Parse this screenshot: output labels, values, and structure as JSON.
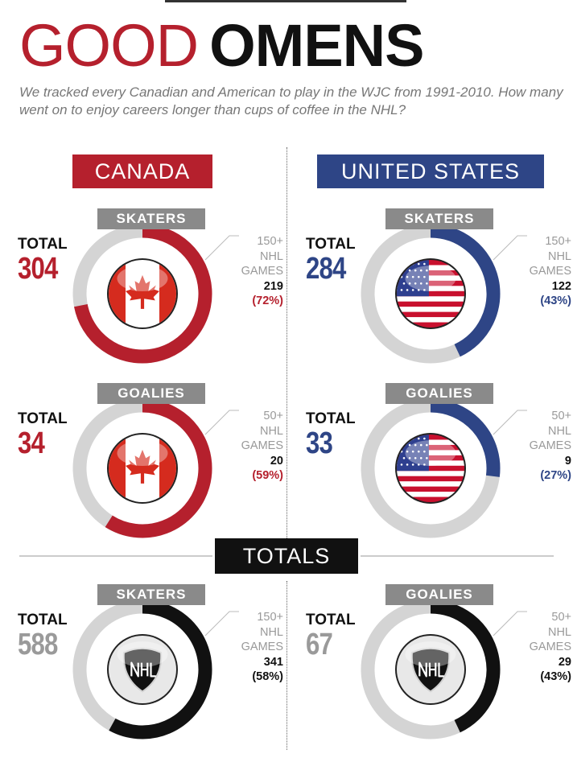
{
  "title": {
    "part1": "GOOD",
    "part2": "OMENS"
  },
  "subtitle": "We tracked every Canadian and American to play in the WJC from 1991-2010. How many went on to enjoy careers longer than cups of coffee in the NHL?",
  "colors": {
    "canada": "#b5202d",
    "usa": "#2e4586",
    "totals_accent": "#111111",
    "track": "#d4d4d4",
    "totals_number": "#9a9a9a"
  },
  "sections": {
    "canada_header": "CANADA",
    "usa_header": "UNITED STATES",
    "totals_header": "TOTALS"
  },
  "panels": {
    "can_sk": {
      "pill": "SKATERS",
      "total_label": "TOTAL",
      "total": "304",
      "annot_line1": "150+",
      "annot_line2": "NHL",
      "annot_line3": "GAMES",
      "count": "219",
      "percent": "(72%)",
      "icon": "canada-flag-icon"
    },
    "usa_sk": {
      "pill": "SKATERS",
      "total_label": "TOTAL",
      "total": "284",
      "annot_line1": "150+",
      "annot_line2": "NHL",
      "annot_line3": "GAMES",
      "count": "122",
      "percent": "(43%)",
      "icon": "usa-flag-icon"
    },
    "can_go": {
      "pill": "GOALIES",
      "total_label": "TOTAL",
      "total": "34",
      "annot_line1": "50+",
      "annot_line2": "NHL",
      "annot_line3": "GAMES",
      "count": "20",
      "percent": "(59%)",
      "icon": "canada-flag-icon"
    },
    "usa_go": {
      "pill": "GOALIES",
      "total_label": "TOTAL",
      "total": "33",
      "annot_line1": "50+",
      "annot_line2": "NHL",
      "annot_line3": "GAMES",
      "count": "9",
      "percent": "(27%)",
      "icon": "usa-flag-icon"
    },
    "tot_sk": {
      "pill": "SKATERS",
      "total_label": "TOTAL",
      "total": "588",
      "annot_line1": "150+",
      "annot_line2": "NHL",
      "annot_line3": "GAMES",
      "count": "341",
      "percent": "(58%)",
      "icon": "nhl-shield-icon"
    },
    "tot_go": {
      "pill": "GOALIES",
      "total_label": "TOTAL",
      "total": "67",
      "annot_line1": "50+",
      "annot_line2": "NHL",
      "annot_line3": "GAMES",
      "count": "29",
      "percent": "(43%)",
      "icon": "nhl-shield-icon"
    }
  },
  "chart_data": [
    {
      "type": "pie",
      "group": "CANADA",
      "category": "SKATERS",
      "total": 304,
      "threshold": "150+ NHL GAMES",
      "value": 219,
      "percent": 72
    },
    {
      "type": "pie",
      "group": "UNITED STATES",
      "category": "SKATERS",
      "total": 284,
      "threshold": "150+ NHL GAMES",
      "value": 122,
      "percent": 43
    },
    {
      "type": "pie",
      "group": "CANADA",
      "category": "GOALIES",
      "total": 34,
      "threshold": "50+ NHL GAMES",
      "value": 20,
      "percent": 59
    },
    {
      "type": "pie",
      "group": "UNITED STATES",
      "category": "GOALIES",
      "total": 33,
      "threshold": "50+ NHL GAMES",
      "value": 9,
      "percent": 27
    },
    {
      "type": "pie",
      "group": "TOTALS",
      "category": "SKATERS",
      "total": 588,
      "threshold": "150+ NHL GAMES",
      "value": 341,
      "percent": 58
    },
    {
      "type": "pie",
      "group": "TOTALS",
      "category": "GOALIES",
      "total": 67,
      "threshold": "50+ NHL GAMES",
      "value": 29,
      "percent": 43
    }
  ]
}
